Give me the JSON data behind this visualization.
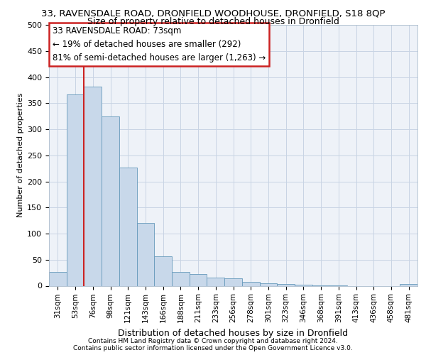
{
  "title1": "33, RAVENSDALE ROAD, DRONFIELD WOODHOUSE, DRONFIELD, S18 8QP",
  "title2": "Size of property relative to detached houses in Dronfield",
  "xlabel": "Distribution of detached houses by size in Dronfield",
  "ylabel": "Number of detached properties",
  "categories": [
    "31sqm",
    "53sqm",
    "76sqm",
    "98sqm",
    "121sqm",
    "143sqm",
    "166sqm",
    "188sqm",
    "211sqm",
    "233sqm",
    "256sqm",
    "278sqm",
    "301sqm",
    "323sqm",
    "346sqm",
    "368sqm",
    "391sqm",
    "413sqm",
    "436sqm",
    "458sqm",
    "481sqm"
  ],
  "values": [
    27,
    367,
    381,
    325,
    226,
    120,
    57,
    27,
    22,
    16,
    14,
    7,
    5,
    3,
    2,
    1,
    1,
    0,
    0,
    0,
    4
  ],
  "bar_color": "#c8d8ea",
  "bar_edge_color": "#6699bb",
  "vline_color": "#cc2222",
  "vline_x_index": 2,
  "annotation_text": "33 RAVENSDALE ROAD: 73sqm\n← 19% of detached houses are smaller (292)\n81% of semi-detached houses are larger (1,263) →",
  "annotation_box_facecolor": "white",
  "annotation_box_edgecolor": "#cc2222",
  "ylim": [
    0,
    500
  ],
  "yticks": [
    0,
    50,
    100,
    150,
    200,
    250,
    300,
    350,
    400,
    450,
    500
  ],
  "footer1": "Contains HM Land Registry data © Crown copyright and database right 2024.",
  "footer2": "Contains public sector information licensed under the Open Government Licence v3.0.",
  "grid_color": "#c8d4e4",
  "bg_color": "#eef2f8",
  "title1_fontsize": 9.5,
  "title2_fontsize": 9,
  "xlabel_fontsize": 9,
  "ylabel_fontsize": 8,
  "xtick_fontsize": 7.5,
  "ytick_fontsize": 8,
  "annot_fontsize": 8.5,
  "footer_fontsize": 6.5
}
